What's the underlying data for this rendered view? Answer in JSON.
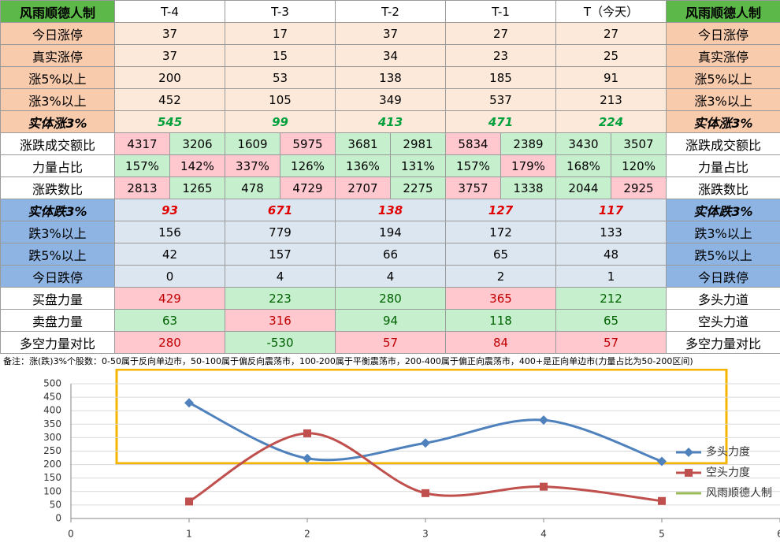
{
  "table": {
    "header": [
      "风雨顺德人制",
      "T-4",
      "T-3",
      "T-2",
      "T-1",
      "T（今天）",
      "风雨顺德人制"
    ],
    "rows": [
      {
        "label": "今日涨停",
        "style": "up",
        "values": [
          "37",
          "17",
          "37",
          "27",
          "27"
        ],
        "right": "今日涨停"
      },
      {
        "label": "真实涨停",
        "style": "up",
        "values": [
          "37",
          "15",
          "34",
          "23",
          "25"
        ],
        "right": "真实涨停"
      },
      {
        "label": "涨5%以上",
        "style": "up",
        "values": [
          "200",
          "53",
          "138",
          "185",
          "91"
        ],
        "right": "涨5%以上"
      },
      {
        "label": "涨3%以上",
        "style": "up",
        "values": [
          "452",
          "105",
          "349",
          "537",
          "213"
        ],
        "right": "涨3%以上"
      },
      {
        "label": "实体涨3%",
        "style": "up-strong",
        "values": [
          "545",
          "99",
          "413",
          "471",
          "224"
        ],
        "right": "实体涨3%"
      },
      {
        "label": "涨跌成交额比",
        "style": "mix",
        "values": [
          "4317",
          "3206",
          "1609",
          "5975",
          "3681",
          "2981",
          "5834",
          "2389",
          "3430",
          "3507"
        ],
        "colors": [
          "#ffc7ce",
          "#c6efce",
          "#c6efce",
          "#ffc7ce",
          "#c6efce",
          "#c6efce",
          "#ffc7ce",
          "#c6efce",
          "#c6efce",
          "#c6efce"
        ],
        "right": "涨跌成交额比"
      },
      {
        "label": "力量占比",
        "style": "mix",
        "values": [
          "157%",
          "142%",
          "337%",
          "126%",
          "136%",
          "131%",
          "157%",
          "179%",
          "168%",
          "120%"
        ],
        "colors": [
          "#c6efce",
          "#ffc7ce",
          "#ffc7ce",
          "#c6efce",
          "#c6efce",
          "#c6efce",
          "#c6efce",
          "#ffc7ce",
          "#c6efce",
          "#c6efce"
        ],
        "right": "力量占比"
      },
      {
        "label": "涨跌数比",
        "style": "mix",
        "values": [
          "2813",
          "1265",
          "478",
          "4729",
          "2707",
          "2275",
          "3757",
          "1338",
          "2044",
          "2925"
        ],
        "colors": [
          "#ffc7ce",
          "#c6efce",
          "#c6efce",
          "#ffc7ce",
          "#ffc7ce",
          "#c6efce",
          "#ffc7ce",
          "#c6efce",
          "#c6efce",
          "#ffc7ce"
        ],
        "right": "涨跌数比"
      },
      {
        "label": "实体跌3%",
        "style": "down-strong",
        "values": [
          "93",
          "671",
          "138",
          "127",
          "117"
        ],
        "right": "实体跌3%"
      },
      {
        "label": "跌3%以上",
        "style": "down",
        "values": [
          "156",
          "779",
          "194",
          "172",
          "133"
        ],
        "right": "跌3%以上"
      },
      {
        "label": "跌5%以上",
        "style": "down",
        "values": [
          "42",
          "157",
          "66",
          "65",
          "48"
        ],
        "right": "跌5%以上"
      },
      {
        "label": "今日跌停",
        "style": "down",
        "values": [
          "0",
          "4",
          "4",
          "2",
          "1"
        ],
        "right": "今日跌停"
      },
      {
        "label": "买盘力量",
        "style": "power",
        "values": [
          "429",
          "223",
          "280",
          "365",
          "212"
        ],
        "colors": [
          "#ffc7ce",
          "#c6efce",
          "#c6efce",
          "#ffc7ce",
          "#c6efce"
        ],
        "right": "多头力道"
      },
      {
        "label": "卖盘力量",
        "style": "power",
        "values": [
          "63",
          "316",
          "94",
          "118",
          "65"
        ],
        "colors": [
          "#c6efce",
          "#ffc7ce",
          "#c6efce",
          "#c6efce",
          "#c6efce"
        ],
        "right": "空头力道"
      },
      {
        "label": "多空力量对比",
        "style": "power",
        "values": [
          "280",
          "-530",
          "57",
          "84",
          "57"
        ],
        "colors": [
          "#ffc7ce",
          "#c6efce",
          "#ffc7ce",
          "#ffc7ce",
          "#ffc7ce"
        ],
        "right": "多空力量对比"
      }
    ]
  },
  "note": "备注：涨(跌)3%个股数：0-50属于反向单边市，50-100属于偏反向震荡市，100-200属于平衡震荡市，200-400属于偏正向震荡市，400+是正向单边市(力量占比为50-200区间)",
  "chart_data": {
    "type": "line",
    "smooth": true,
    "x": [
      1,
      2,
      3,
      4,
      5
    ],
    "series": [
      {
        "name": "多头力度",
        "color": "#4f81bd",
        "marker": "diamond",
        "values": [
          429,
          223,
          280,
          365,
          212
        ]
      },
      {
        "name": "空头力度",
        "color": "#c0504d",
        "marker": "square",
        "values": [
          63,
          316,
          94,
          118,
          65
        ]
      },
      {
        "name": "风雨顺德人制",
        "color": "#9bbb59",
        "marker": "none",
        "values": [
          null,
          null,
          null,
          null,
          null
        ]
      }
    ],
    "xlim": [
      0,
      6
    ],
    "xticks": [
      0,
      1,
      2,
      3,
      4,
      5,
      6
    ],
    "ylim": [
      0,
      500
    ],
    "yticks": [
      0,
      50,
      100,
      150,
      200,
      250,
      300,
      350,
      400,
      450,
      500
    ],
    "grid": true
  }
}
